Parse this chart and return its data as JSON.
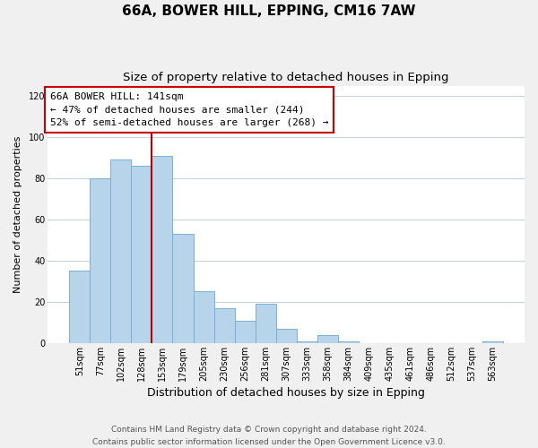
{
  "title": "66A, BOWER HILL, EPPING, CM16 7AW",
  "subtitle": "Size of property relative to detached houses in Epping",
  "xlabel": "Distribution of detached houses by size in Epping",
  "ylabel": "Number of detached properties",
  "categories": [
    "51sqm",
    "77sqm",
    "102sqm",
    "128sqm",
    "153sqm",
    "179sqm",
    "205sqm",
    "230sqm",
    "256sqm",
    "281sqm",
    "307sqm",
    "333sqm",
    "358sqm",
    "384sqm",
    "409sqm",
    "435sqm",
    "461sqm",
    "486sqm",
    "512sqm",
    "537sqm",
    "563sqm"
  ],
  "values": [
    35,
    80,
    89,
    86,
    91,
    53,
    25,
    17,
    11,
    19,
    7,
    1,
    4,
    1,
    0,
    0,
    0,
    0,
    0,
    0,
    1
  ],
  "bar_color": "#b8d4ea",
  "bar_edge_color": "#7aafd4",
  "vline_x_index": 3,
  "vline_color": "#bb0000",
  "annotation_line1": "66A BOWER HILL: 141sqm",
  "annotation_line2": "← 47% of detached houses are smaller (244)",
  "annotation_line3": "52% of semi-detached houses are larger (268) →",
  "ylim": [
    0,
    125
  ],
  "yticks": [
    0,
    20,
    40,
    60,
    80,
    100,
    120
  ],
  "footer_line1": "Contains HM Land Registry data © Crown copyright and database right 2024.",
  "footer_line2": "Contains public sector information licensed under the Open Government Licence v3.0.",
  "background_color": "#f0f0f0",
  "plot_background_color": "#ffffff",
  "grid_color": "#c8d4e0",
  "box_edge_color": "#cc0000",
  "title_fontsize": 11,
  "subtitle_fontsize": 9.5,
  "xlabel_fontsize": 9,
  "ylabel_fontsize": 8,
  "tick_fontsize": 7,
  "annotation_fontsize": 8,
  "footer_fontsize": 6.5
}
